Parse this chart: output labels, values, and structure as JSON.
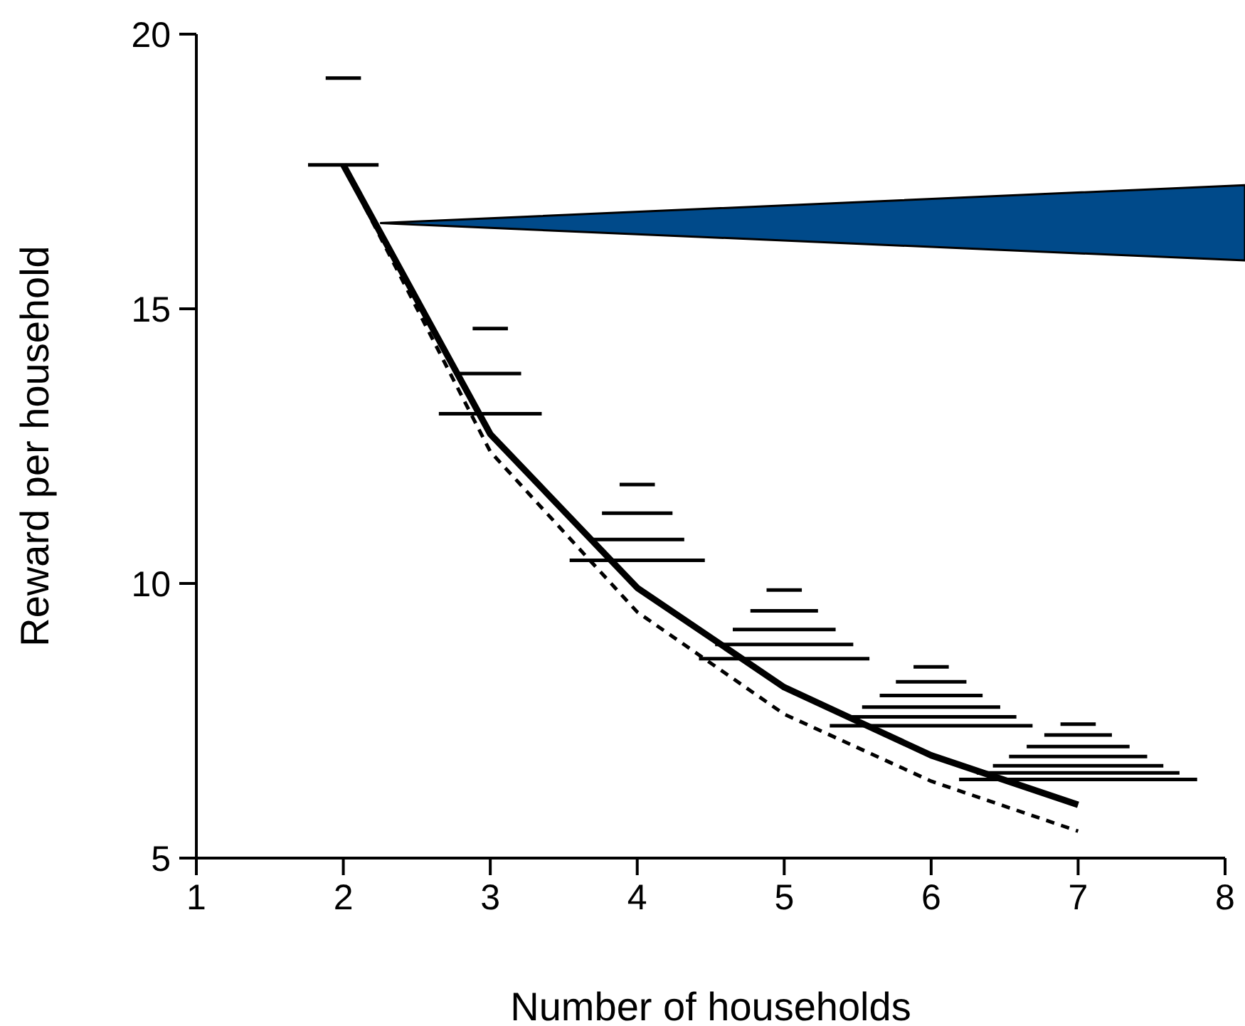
{
  "chart_data": {
    "type": "line",
    "xlabel": "Number of households",
    "ylabel": "Reward per household",
    "xlim": [
      1,
      8
    ],
    "ylim": [
      5,
      20
    ],
    "xticks": [
      1,
      2,
      3,
      4,
      5,
      6,
      7,
      8
    ],
    "yticks": [
      5,
      10,
      15,
      20
    ],
    "grid": false,
    "marker": "none",
    "series": [
      {
        "type": "line",
        "color": "#000000",
        "line_style": "solid",
        "x": [
          2,
          3,
          4,
          5,
          6,
          7
        ],
        "values": [
          17.62,
          12.72,
          9.92,
          8.11,
          6.87,
          5.97
        ]
      },
      {
        "type": "line",
        "color": "#000000",
        "line_style": "dashed",
        "x": [
          2,
          3,
          4,
          5,
          6,
          7
        ],
        "values": [
          17.62,
          12.4,
          9.48,
          7.62,
          6.4,
          5.49
        ]
      },
      {
        "type": "line",
        "color": "#000000",
        "x": [
          1.88,
          2.12
        ],
        "values": [
          19.2,
          19.2
        ]
      },
      {
        "type": "line",
        "color": "#000000",
        "x": [
          1.76,
          2.24
        ],
        "values": [
          17.62,
          17.62
        ]
      },
      {
        "type": "line",
        "color": "#000000",
        "x": [
          2.88,
          3.12
        ],
        "values": [
          14.64,
          14.64
        ]
      },
      {
        "type": "line",
        "color": "#000000",
        "x": [
          2.79,
          3.21
        ],
        "values": [
          13.82,
          13.82
        ]
      },
      {
        "type": "line",
        "color": "#000000",
        "x": [
          2.65,
          3.35
        ],
        "values": [
          13.09,
          13.09
        ]
      },
      {
        "type": "line",
        "color": "#000000",
        "x": [
          3.88,
          4.12
        ],
        "values": [
          11.8,
          11.8
        ]
      },
      {
        "type": "line",
        "color": "#000000",
        "x": [
          3.76,
          4.24
        ],
        "values": [
          11.28,
          11.28
        ]
      },
      {
        "type": "line",
        "color": "#000000",
        "x": [
          3.68,
          4.32
        ],
        "values": [
          10.8,
          10.8
        ]
      },
      {
        "type": "line",
        "color": "#000000",
        "x": [
          3.54,
          4.46
        ],
        "values": [
          10.42,
          10.42
        ]
      },
      {
        "type": "line",
        "color": "#000000",
        "x": [
          4.88,
          5.12
        ],
        "values": [
          9.88,
          9.88
        ]
      },
      {
        "type": "line",
        "color": "#000000",
        "x": [
          4.77,
          5.23
        ],
        "values": [
          9.5,
          9.5
        ]
      },
      {
        "type": "line",
        "color": "#000000",
        "x": [
          4.65,
          5.35
        ],
        "values": [
          9.16,
          9.16
        ]
      },
      {
        "type": "line",
        "color": "#000000",
        "x": [
          4.53,
          5.47
        ],
        "values": [
          8.89,
          8.89
        ]
      },
      {
        "type": "line",
        "color": "#000000",
        "x": [
          4.42,
          5.58
        ],
        "values": [
          8.63,
          8.63
        ]
      },
      {
        "type": "line",
        "color": "#000000",
        "x": [
          5.88,
          6.12
        ],
        "values": [
          8.48,
          8.48
        ]
      },
      {
        "type": "line",
        "color": "#000000",
        "x": [
          5.76,
          6.24
        ],
        "values": [
          8.21,
          8.21
        ]
      },
      {
        "type": "line",
        "color": "#000000",
        "x": [
          5.65,
          6.35
        ],
        "values": [
          7.96,
          7.96
        ]
      },
      {
        "type": "line",
        "color": "#000000",
        "x": [
          5.53,
          6.47
        ],
        "values": [
          7.75,
          7.75
        ]
      },
      {
        "type": "line",
        "color": "#000000",
        "x": [
          5.42,
          6.58
        ],
        "values": [
          7.57,
          7.57
        ]
      },
      {
        "type": "line",
        "color": "#000000",
        "x": [
          5.31,
          6.69
        ],
        "values": [
          7.41,
          7.41
        ]
      },
      {
        "type": "line",
        "color": "#000000",
        "x": [
          6.88,
          7.12
        ],
        "values": [
          7.44,
          7.44
        ]
      },
      {
        "type": "line",
        "color": "#000000",
        "x": [
          6.77,
          7.23
        ],
        "values": [
          7.24,
          7.24
        ]
      },
      {
        "type": "line",
        "color": "#000000",
        "x": [
          6.65,
          7.35
        ],
        "values": [
          7.03,
          7.03
        ]
      },
      {
        "type": "line",
        "color": "#000000",
        "x": [
          6.53,
          7.47
        ],
        "values": [
          6.85,
          6.85
        ]
      },
      {
        "type": "line",
        "color": "#000000",
        "x": [
          6.42,
          7.58
        ],
        "values": [
          6.68,
          6.68
        ]
      },
      {
        "type": "line",
        "color": "#000000",
        "x": [
          6.31,
          7.69
        ],
        "values": [
          6.55,
          6.55
        ]
      },
      {
        "type": "line",
        "color": "#000000",
        "x": [
          6.19,
          7.81
        ],
        "values": [
          6.43,
          6.43
        ]
      }
    ]
  }
}
